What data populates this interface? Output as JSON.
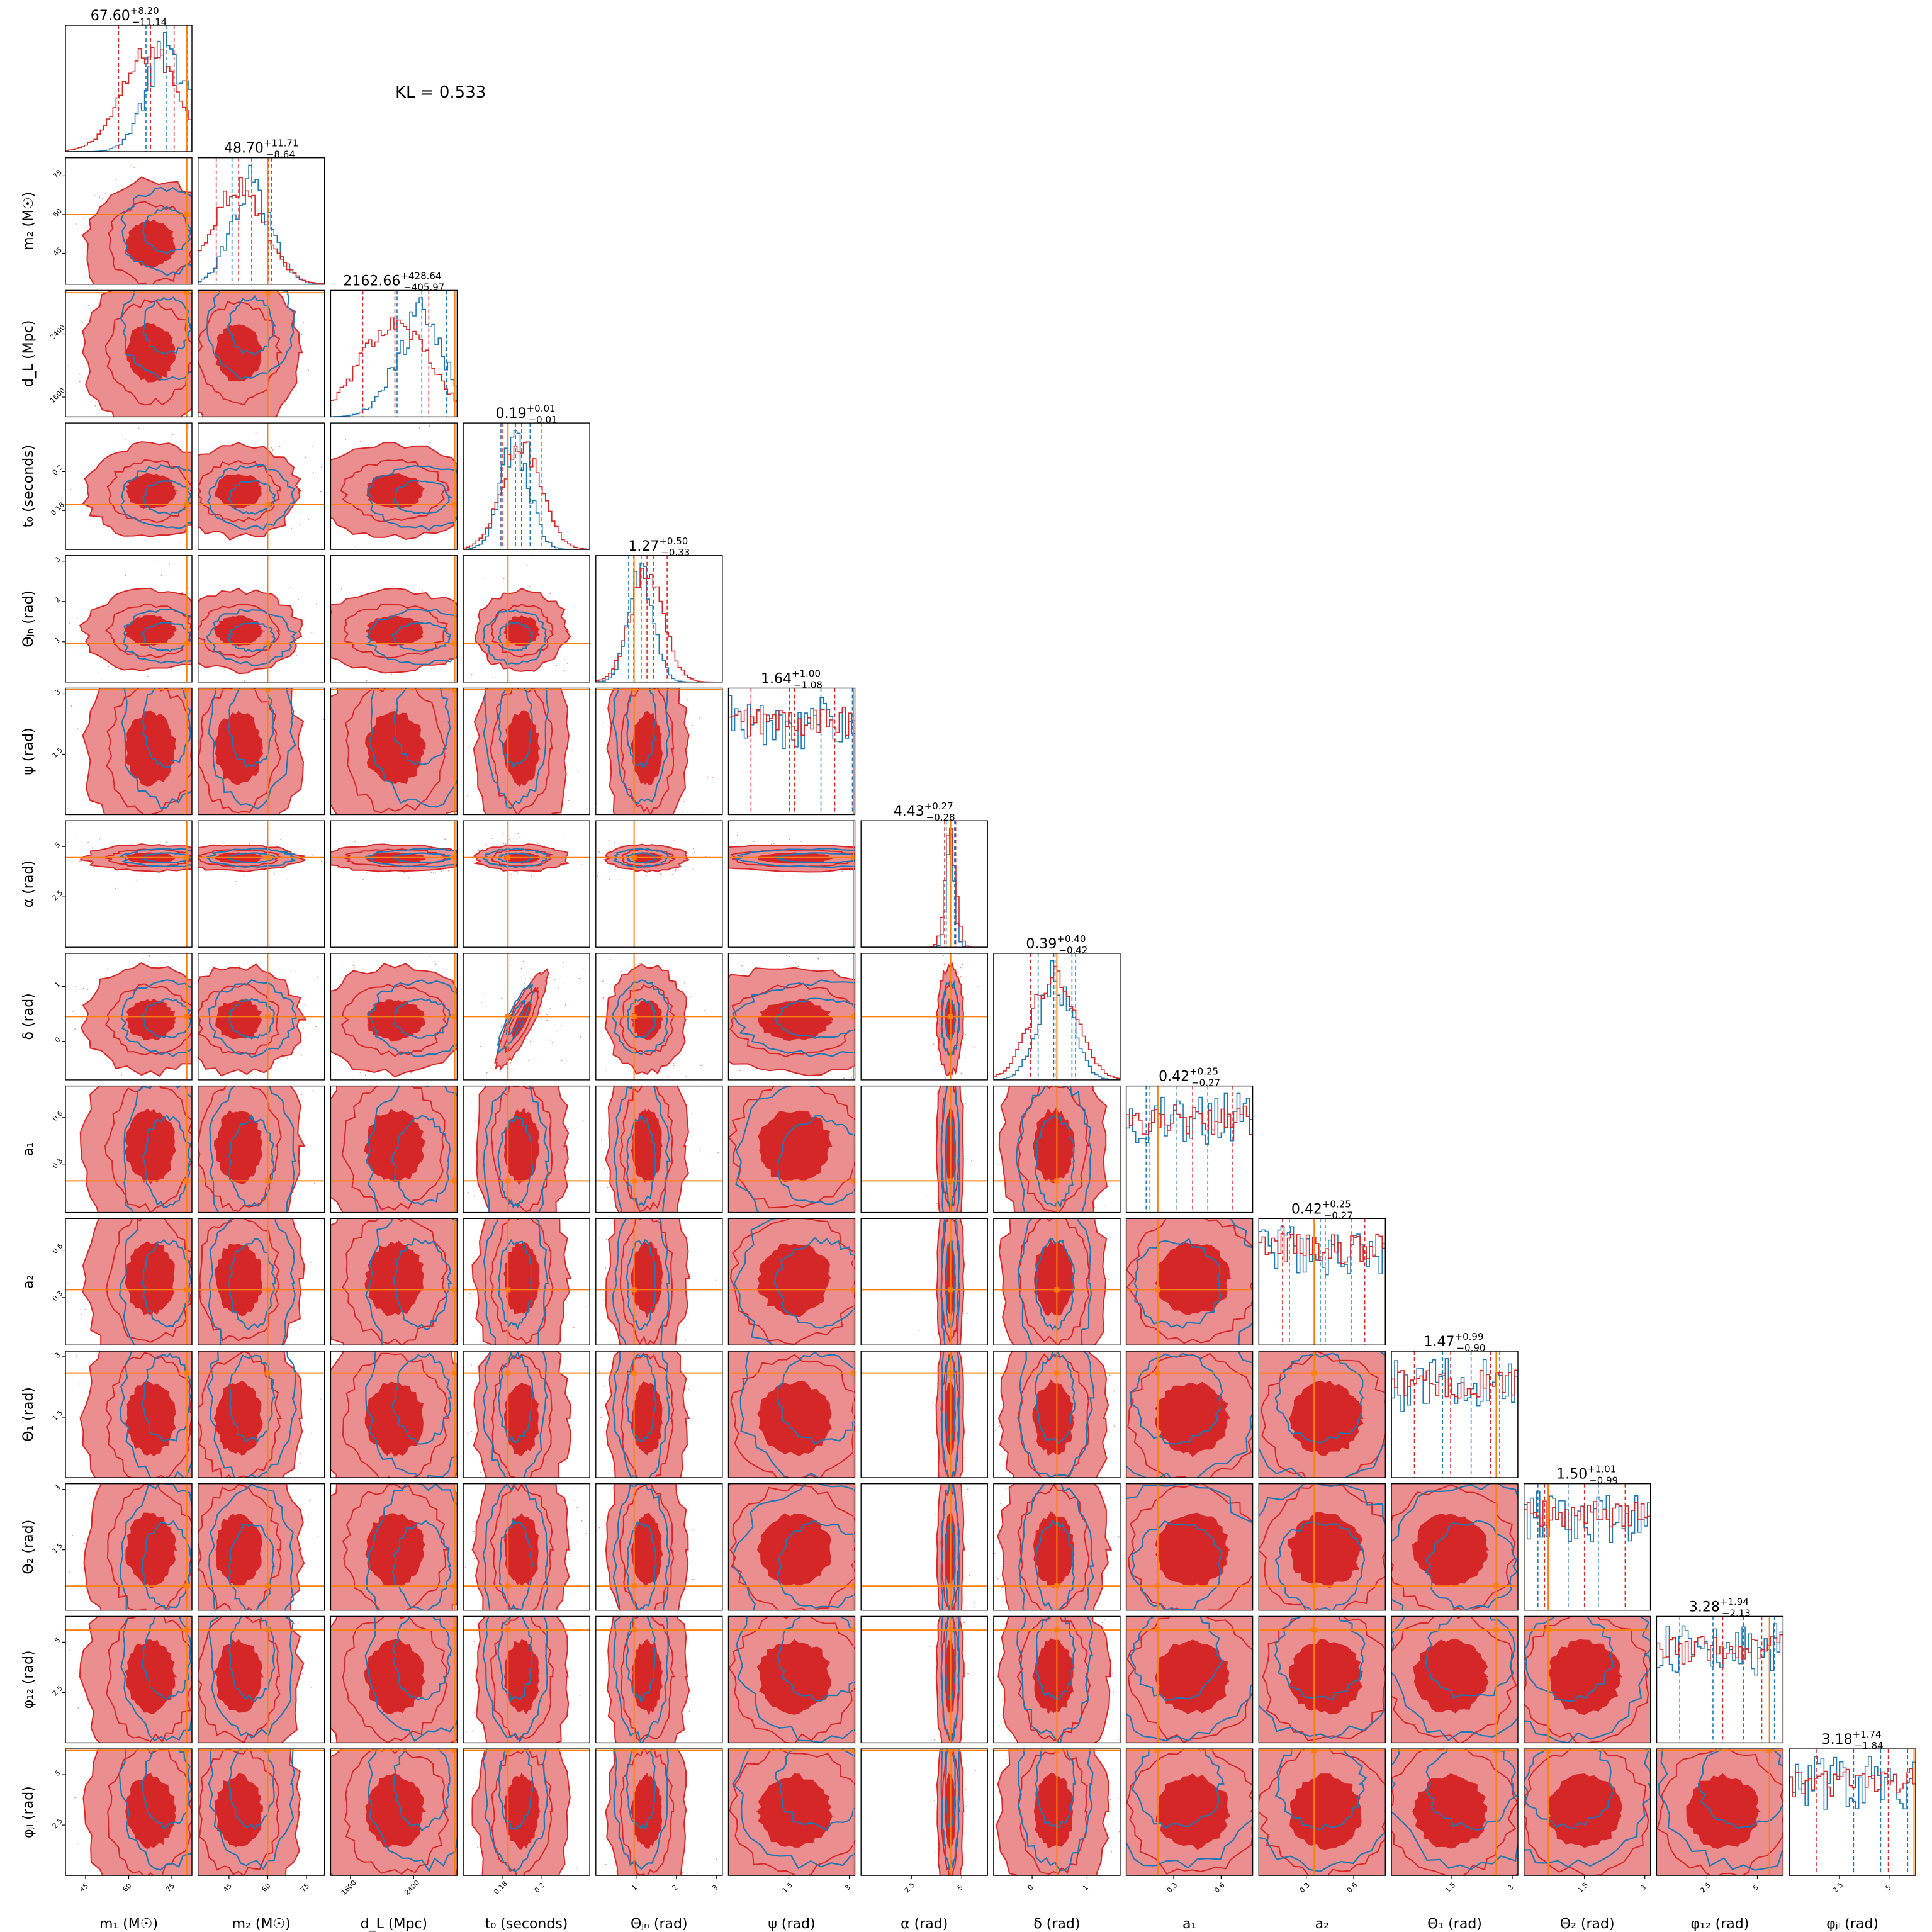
{
  "figure": {
    "annotation": "KL = 0.533"
  },
  "colors": {
    "flow_red": "#d62728",
    "flow_red_light": "#eb8e8f",
    "reference_blue": "#1f77b4",
    "truth_orange": "#ff7f0e",
    "panel_border": "#000000",
    "background": "#ffffff"
  },
  "chart_data": {
    "type": "corner",
    "grid": false,
    "legend": "none",
    "parameters": [
      {
        "key": "m1",
        "label": "m₁ (M☉)",
        "range": [
          38,
          82
        ],
        "ticks": [
          45,
          60,
          75
        ],
        "truth": 80.2,
        "median": 67.6,
        "plus": 8.2,
        "minus": 11.14,
        "title": "67.60+8.20−11.14"
      },
      {
        "key": "m2",
        "label": "m₂ (M☉)",
        "range": [
          33,
          82
        ],
        "ticks": [
          45,
          60,
          75
        ],
        "truth": 60.0,
        "median": 48.7,
        "plus": 11.71,
        "minus": 8.64,
        "title": "48.70+11.71−8.64"
      },
      {
        "key": "dL",
        "label": "d_L (Mpc)",
        "range": [
          1350,
          2950
        ],
        "ticks": [
          1600,
          2400
        ],
        "truth": 2920,
        "median": 2162.66,
        "plus": 428.64,
        "minus": 405.97,
        "title": "2162.66+428.64−405.97"
      },
      {
        "key": "t0",
        "label": "t₀ (seconds)",
        "range": [
          0.16,
          0.225
        ],
        "ticks": [
          0.18,
          0.2
        ],
        "truth": 0.183,
        "median": 0.19,
        "plus": 0.01,
        "minus": 0.01,
        "title": "0.19+0.01−0.01"
      },
      {
        "key": "theta_jn",
        "label": "Θⱼₙ (rad)",
        "range": [
          0.0,
          3.14
        ],
        "ticks": [
          1,
          2,
          3
        ],
        "truth": 0.95,
        "median": 1.27,
        "plus": 0.5,
        "minus": 0.33,
        "title": "1.27+0.50−0.33"
      },
      {
        "key": "psi",
        "label": "ψ (rad)",
        "range": [
          0.0,
          3.14
        ],
        "ticks": [
          1.5,
          3.0
        ],
        "truth": 3.1,
        "median": 1.64,
        "plus": 1.0,
        "minus": 1.08,
        "title": "1.64+1.00−1.08"
      },
      {
        "key": "alpha",
        "label": "α (rad)",
        "range": [
          0.0,
          6.28
        ],
        "ticks": [
          2.5,
          5.0
        ],
        "truth": 4.45,
        "median": 4.43,
        "plus": 0.27,
        "minus": 0.28,
        "title": "4.43+0.27−0.28"
      },
      {
        "key": "delta",
        "label": "δ (rad)",
        "range": [
          -0.7,
          1.6
        ],
        "ticks": [
          0,
          1
        ],
        "truth": 0.45,
        "median": 0.39,
        "plus": 0.4,
        "minus": 0.42,
        "title": "0.39+0.40−0.42"
      },
      {
        "key": "a1",
        "label": "a₁",
        "range": [
          0.0,
          0.8
        ],
        "ticks": [
          0.3,
          0.6
        ],
        "truth": 0.2,
        "median": 0.42,
        "plus": 0.25,
        "minus": 0.27,
        "title": "0.42+0.25−0.27"
      },
      {
        "key": "a2",
        "label": "a₂",
        "range": [
          0.0,
          0.8
        ],
        "ticks": [
          0.3,
          0.6
        ],
        "truth": 0.35,
        "median": 0.42,
        "plus": 0.25,
        "minus": 0.27,
        "title": "0.42+0.25−0.27"
      },
      {
        "key": "theta1",
        "label": "Θ₁ (rad)",
        "range": [
          0.0,
          3.14
        ],
        "ticks": [
          1.5,
          3.0
        ],
        "truth": 2.6,
        "median": 1.47,
        "plus": 0.99,
        "minus": 0.9,
        "title": "1.47+0.99−0.90"
      },
      {
        "key": "theta2",
        "label": "Θ₂ (rad)",
        "range": [
          0.0,
          3.14
        ],
        "ticks": [
          1.5,
          3.0
        ],
        "truth": 0.6,
        "median": 1.5,
        "plus": 1.01,
        "minus": 0.99,
        "title": "1.50+1.01−0.99"
      },
      {
        "key": "phi12",
        "label": "φ₁₂ (rad)",
        "range": [
          0.0,
          6.28
        ],
        "ticks": [
          2.5,
          5.0
        ],
        "truth": 5.6,
        "median": 3.28,
        "plus": 1.94,
        "minus": 2.13,
        "title": "3.28+1.94−2.13"
      },
      {
        "key": "phijl",
        "label": "φⱼₗ (rad)",
        "range": [
          0.0,
          6.28
        ],
        "ticks": [
          2.5,
          5.0
        ],
        "truth": 6.2,
        "median": 3.18,
        "plus": 1.74,
        "minus": 1.84,
        "title": "3.18+1.74−1.84"
      }
    ],
    "series": [
      {
        "role": "flow",
        "color": "#d62728"
      },
      {
        "role": "reference",
        "color": "#1f77b4"
      }
    ]
  }
}
